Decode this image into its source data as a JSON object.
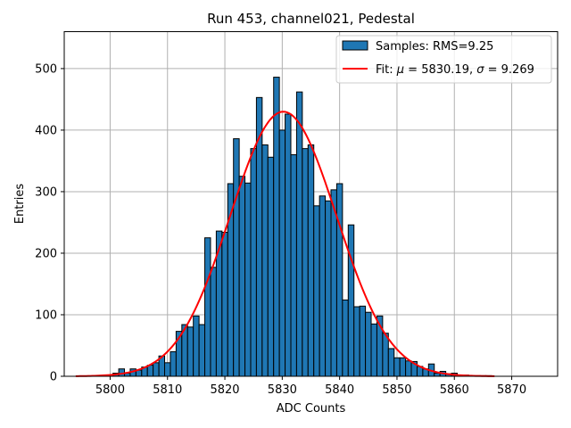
{
  "chart_data": {
    "type": "histogram",
    "title": "Run 453, channel021, Pedestal",
    "xlabel": "ADC Counts",
    "ylabel": "Entries",
    "xlim": [
      5792,
      5878
    ],
    "ylim": [
      0,
      560
    ],
    "xticks": [
      5800,
      5810,
      5820,
      5830,
      5840,
      5850,
      5860,
      5870
    ],
    "yticks": [
      0,
      100,
      200,
      300,
      400,
      500
    ],
    "grid": true,
    "bar_color": "#1f77b4",
    "fit_color": "#ff0000",
    "bins": [
      {
        "x": 5801,
        "count": 5
      },
      {
        "x": 5802,
        "count": 12
      },
      {
        "x": 5803,
        "count": 5
      },
      {
        "x": 5804,
        "count": 12
      },
      {
        "x": 5805,
        "count": 10
      },
      {
        "x": 5806,
        "count": 15
      },
      {
        "x": 5807,
        "count": 18
      },
      {
        "x": 5808,
        "count": 22
      },
      {
        "x": 5809,
        "count": 33
      },
      {
        "x": 5810,
        "count": 22
      },
      {
        "x": 5811,
        "count": 40
      },
      {
        "x": 5812,
        "count": 73
      },
      {
        "x": 5813,
        "count": 84
      },
      {
        "x": 5814,
        "count": 80
      },
      {
        "x": 5815,
        "count": 98
      },
      {
        "x": 5816,
        "count": 84
      },
      {
        "x": 5817,
        "count": 225
      },
      {
        "x": 5818,
        "count": 177
      },
      {
        "x": 5819,
        "count": 236
      },
      {
        "x": 5820,
        "count": 234
      },
      {
        "x": 5821,
        "count": 313
      },
      {
        "x": 5822,
        "count": 386
      },
      {
        "x": 5823,
        "count": 325
      },
      {
        "x": 5824,
        "count": 314
      },
      {
        "x": 5825,
        "count": 370
      },
      {
        "x": 5826,
        "count": 453
      },
      {
        "x": 5827,
        "count": 376
      },
      {
        "x": 5828,
        "count": 356
      },
      {
        "x": 5829,
        "count": 486
      },
      {
        "x": 5830,
        "count": 400
      },
      {
        "x": 5831,
        "count": 426
      },
      {
        "x": 5832,
        "count": 360
      },
      {
        "x": 5833,
        "count": 462
      },
      {
        "x": 5834,
        "count": 370
      },
      {
        "x": 5835,
        "count": 376
      },
      {
        "x": 5836,
        "count": 277
      },
      {
        "x": 5837,
        "count": 293
      },
      {
        "x": 5838,
        "count": 285
      },
      {
        "x": 5839,
        "count": 303
      },
      {
        "x": 5840,
        "count": 313
      },
      {
        "x": 5841,
        "count": 124
      },
      {
        "x": 5842,
        "count": 246
      },
      {
        "x": 5843,
        "count": 113
      },
      {
        "x": 5844,
        "count": 114
      },
      {
        "x": 5845,
        "count": 104
      },
      {
        "x": 5846,
        "count": 85
      },
      {
        "x": 5847,
        "count": 98
      },
      {
        "x": 5848,
        "count": 70
      },
      {
        "x": 5849,
        "count": 45
      },
      {
        "x": 5850,
        "count": 30
      },
      {
        "x": 5851,
        "count": 30
      },
      {
        "x": 5852,
        "count": 25
      },
      {
        "x": 5853,
        "count": 24
      },
      {
        "x": 5854,
        "count": 16
      },
      {
        "x": 5855,
        "count": 12
      },
      {
        "x": 5856,
        "count": 20
      },
      {
        "x": 5857,
        "count": 5
      },
      {
        "x": 5858,
        "count": 8
      },
      {
        "x": 5859,
        "count": 4
      },
      {
        "x": 5860,
        "count": 5
      },
      {
        "x": 5861,
        "count": 2
      },
      {
        "x": 5862,
        "count": 2
      },
      {
        "x": 5863,
        "count": 1
      },
      {
        "x": 5864,
        "count": 1
      },
      {
        "x": 5865,
        "count": 1
      },
      {
        "x": 5866,
        "count": 1
      }
    ],
    "bin_width": 1,
    "fit": {
      "mu": 5830.19,
      "sigma": 9.269,
      "amplitude": 430,
      "x_range": [
        5794,
        5867
      ]
    },
    "legend": {
      "placement": "top-right",
      "entries": [
        {
          "kind": "patch",
          "label": "Samples: RMS=9.25"
        },
        {
          "kind": "line",
          "label_prefix": "Fit: ",
          "mu_symbol": "μ",
          "mu_text": " = 5830.19, ",
          "sigma_symbol": "σ",
          "sigma_text": " = 9.269"
        }
      ]
    }
  }
}
